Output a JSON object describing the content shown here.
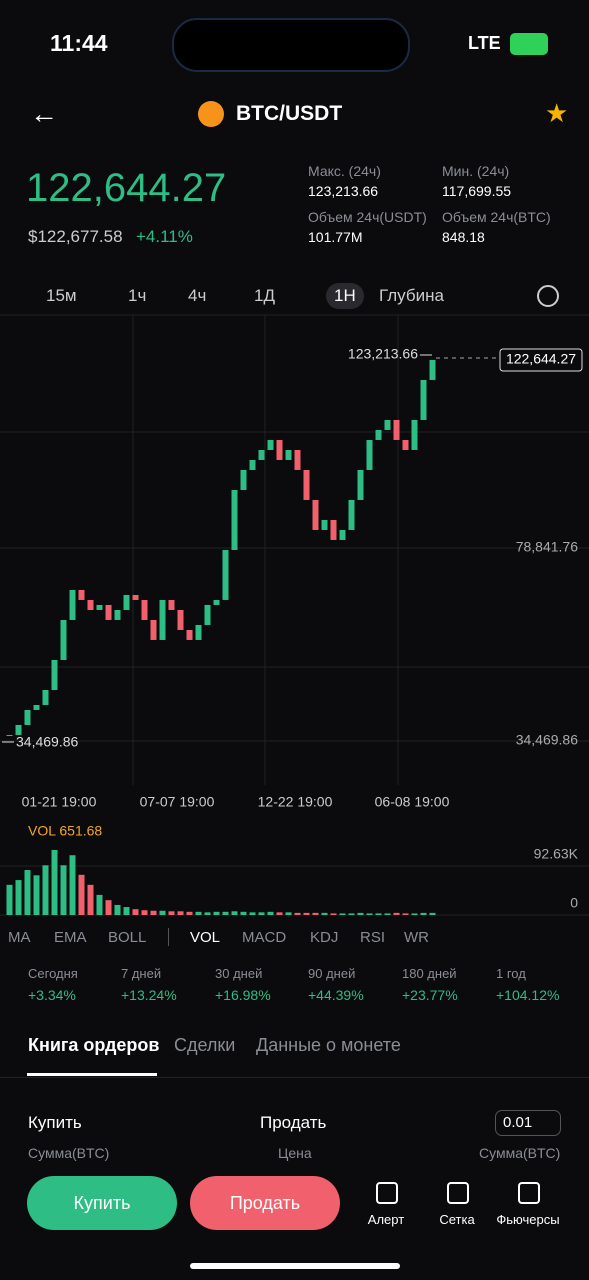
{
  "status": {
    "time": "11:44",
    "network": "LTE"
  },
  "header": {
    "pair": "BTC/USDT"
  },
  "price": {
    "last": "122,644.27",
    "usd": "$122,677.58",
    "change": "+4.11%"
  },
  "stats": [
    {
      "label": "Макс. (24ч)",
      "value": "123,213.66"
    },
    {
      "label": "Мин. (24ч)",
      "value": "117,699.55"
    },
    {
      "label": "Объем 24ч(USDT)",
      "value": "101.77M"
    },
    {
      "label": "Объем 24ч(BTC)",
      "value": "848.18"
    }
  ],
  "timeframes": [
    "15м",
    "1ч",
    "4ч",
    "1Д",
    "1Н",
    "Глубина"
  ],
  "chart_data": {
    "type": "candlestick",
    "closes": [
      35849,
      38148,
      41597,
      42746,
      46195,
      53092,
      62288,
      69185,
      66886,
      64587,
      65736,
      62288,
      64587,
      68035,
      66886,
      62288,
      57690,
      66886,
      64587,
      59989,
      57690,
      61138,
      65736,
      66886,
      78381,
      92175,
      96773,
      99072,
      101371,
      103670,
      99072,
      101371,
      96773,
      89876,
      82979,
      85278,
      80680,
      82979,
      89876,
      96773,
      103670,
      105969,
      108268,
      103670,
      101371,
      108268,
      117464,
      122062
    ],
    "ylim": [
      24350,
      132400
    ],
    "yticks": [
      {
        "value": 78841.76,
        "label": "78,841.76"
      },
      {
        "value": 34469.86,
        "label": "34,469.86"
      }
    ],
    "max_label": "123,213.66",
    "min_label": "34,469.86",
    "current_label": "122,644.27",
    "x_labels": [
      "01-21 19:00",
      "07-07 19:00",
      "12-22 19:00",
      "06-08 19:00"
    ],
    "volume": {
      "label": "VOL 651.68",
      "values": [
        57000,
        66000,
        85000,
        75000,
        94000,
        123000,
        94000,
        113000,
        76000,
        57000,
        38000,
        28000,
        19000,
        15000,
        11000,
        9000,
        8000,
        8000,
        7000,
        7000,
        6000,
        6000,
        5000,
        6000,
        6000,
        7000,
        6000,
        5000,
        5000,
        6000,
        5000,
        5000,
        4000,
        4000,
        4000,
        4000,
        3000,
        3000,
        3000,
        4000,
        3000,
        3000,
        3000,
        4000,
        3000,
        3000,
        4000,
        4000
      ],
      "ylim": [
        0,
        175800
      ],
      "yticks": [
        {
          "value": 92630,
          "label": "92.63K"
        },
        0
      ]
    }
  },
  "indicators": [
    "MA",
    "EMA",
    "BOLL",
    "VOL",
    "MACD",
    "KDJ",
    "RSI",
    "WR"
  ],
  "performance": [
    {
      "period": "Сегодня",
      "change": "+3.34%"
    },
    {
      "period": "7 дней",
      "change": "+13.24%"
    },
    {
      "period": "30 дней",
      "change": "+16.98%"
    },
    {
      "period": "90 дней",
      "change": "+44.39%"
    },
    {
      "period": "180 дней",
      "change": "+23.77%"
    },
    {
      "period": "1 год",
      "change": "+104.12%"
    }
  ],
  "tabs": [
    "Книга ордеров",
    "Сделки",
    "Данные о монете"
  ],
  "order_book": {
    "buy": "Купить",
    "sell": "Продать",
    "step": "0.01",
    "col_left": "Сумма(BTC)",
    "col_mid": "Цена",
    "col_right": "Сумма(BTC)"
  },
  "actions": {
    "buy": "Купить",
    "sell": "Продать"
  },
  "nav": [
    "Алерт",
    "Сетка",
    "Фьючерсы"
  ]
}
